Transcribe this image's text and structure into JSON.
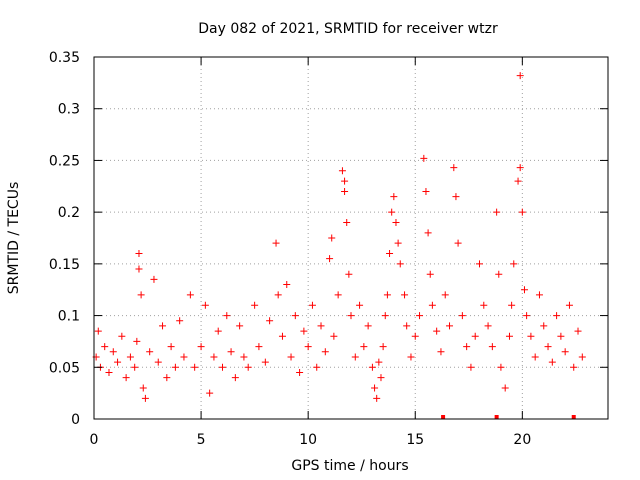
{
  "chart_data": {
    "type": "scatter",
    "title": "Day 082 of 2021, SRMTID for receiver wtzr",
    "xlabel": "GPS time / hours",
    "ylabel": "SRMTID / TECUs",
    "xlim": [
      0,
      24
    ],
    "ylim": [
      0,
      0.35
    ],
    "x_ticks": [
      0,
      5,
      10,
      15,
      20
    ],
    "x_tick_labels": [
      "0",
      "5",
      "10",
      "15",
      "20"
    ],
    "y_ticks": [
      0,
      0.05,
      0.1,
      0.15,
      0.2,
      0.25,
      0.3,
      0.35
    ],
    "y_tick_labels": [
      "0",
      "0.05",
      "0.1",
      "0.15",
      "0.2",
      "0.25",
      "0.3",
      "0.35"
    ],
    "grid": true,
    "marker": "+",
    "color": "#ff0000",
    "series": [
      {
        "name": "SRMTID",
        "points": [
          [
            0.1,
            0.06
          ],
          [
            0.2,
            0.085
          ],
          [
            0.3,
            0.05
          ],
          [
            0.5,
            0.07
          ],
          [
            0.7,
            0.045
          ],
          [
            0.9,
            0.065
          ],
          [
            1.1,
            0.055
          ],
          [
            1.3,
            0.08
          ],
          [
            1.5,
            0.04
          ],
          [
            1.7,
            0.06
          ],
          [
            1.9,
            0.05
          ],
          [
            2.0,
            0.075
          ],
          [
            2.1,
            0.16
          ],
          [
            2.1,
            0.145
          ],
          [
            2.2,
            0.12
          ],
          [
            2.3,
            0.03
          ],
          [
            2.4,
            0.02
          ],
          [
            2.6,
            0.065
          ],
          [
            2.8,
            0.135
          ],
          [
            3.0,
            0.055
          ],
          [
            3.2,
            0.09
          ],
          [
            3.4,
            0.04
          ],
          [
            3.6,
            0.07
          ],
          [
            3.8,
            0.05
          ],
          [
            4.0,
            0.095
          ],
          [
            4.2,
            0.06
          ],
          [
            4.5,
            0.12
          ],
          [
            4.7,
            0.05
          ],
          [
            5.0,
            0.07
          ],
          [
            5.2,
            0.11
          ],
          [
            5.4,
            0.025
          ],
          [
            5.6,
            0.06
          ],
          [
            5.8,
            0.085
          ],
          [
            6.0,
            0.05
          ],
          [
            6.2,
            0.1
          ],
          [
            6.4,
            0.065
          ],
          [
            6.6,
            0.04
          ],
          [
            6.8,
            0.09
          ],
          [
            7.0,
            0.06
          ],
          [
            7.2,
            0.05
          ],
          [
            7.5,
            0.11
          ],
          [
            7.7,
            0.07
          ],
          [
            8.0,
            0.055
          ],
          [
            8.2,
            0.095
          ],
          [
            8.5,
            0.17
          ],
          [
            8.6,
            0.12
          ],
          [
            8.8,
            0.08
          ],
          [
            9.0,
            0.13
          ],
          [
            9.2,
            0.06
          ],
          [
            9.4,
            0.1
          ],
          [
            9.6,
            0.045
          ],
          [
            9.8,
            0.085
          ],
          [
            10.0,
            0.07
          ],
          [
            10.2,
            0.11
          ],
          [
            10.4,
            0.05
          ],
          [
            10.6,
            0.09
          ],
          [
            10.8,
            0.065
          ],
          [
            11.0,
            0.155
          ],
          [
            11.1,
            0.175
          ],
          [
            11.2,
            0.08
          ],
          [
            11.4,
            0.12
          ],
          [
            11.6,
            0.24
          ],
          [
            11.7,
            0.23
          ],
          [
            11.7,
            0.22
          ],
          [
            11.8,
            0.19
          ],
          [
            11.9,
            0.14
          ],
          [
            12.0,
            0.1
          ],
          [
            12.2,
            0.06
          ],
          [
            12.4,
            0.11
          ],
          [
            12.6,
            0.07
          ],
          [
            12.8,
            0.09
          ],
          [
            13.0,
            0.05
          ],
          [
            13.1,
            0.03
          ],
          [
            13.2,
            0.02
          ],
          [
            13.3,
            0.055
          ],
          [
            13.4,
            0.04
          ],
          [
            13.5,
            0.07
          ],
          [
            13.6,
            0.1
          ],
          [
            13.7,
            0.12
          ],
          [
            13.8,
            0.16
          ],
          [
            13.9,
            0.2
          ],
          [
            14.0,
            0.215
          ],
          [
            14.1,
            0.19
          ],
          [
            14.2,
            0.17
          ],
          [
            14.3,
            0.15
          ],
          [
            14.5,
            0.12
          ],
          [
            14.6,
            0.09
          ],
          [
            14.8,
            0.06
          ],
          [
            15.0,
            0.08
          ],
          [
            15.2,
            0.1
          ],
          [
            15.4,
            0.252
          ],
          [
            15.5,
            0.22
          ],
          [
            15.6,
            0.18
          ],
          [
            15.7,
            0.14
          ],
          [
            15.8,
            0.11
          ],
          [
            16.0,
            0.085
          ],
          [
            16.2,
            0.065
          ],
          [
            16.4,
            0.12
          ],
          [
            16.6,
            0.09
          ],
          [
            16.8,
            0.243
          ],
          [
            16.9,
            0.215
          ],
          [
            17.0,
            0.17
          ],
          [
            17.2,
            0.1
          ],
          [
            17.4,
            0.07
          ],
          [
            17.6,
            0.05
          ],
          [
            17.8,
            0.08
          ],
          [
            18.0,
            0.15
          ],
          [
            18.2,
            0.11
          ],
          [
            18.4,
            0.09
          ],
          [
            18.6,
            0.07
          ],
          [
            18.8,
            0.2
          ],
          [
            18.9,
            0.14
          ],
          [
            19.0,
            0.05
          ],
          [
            19.2,
            0.03
          ],
          [
            19.4,
            0.08
          ],
          [
            19.5,
            0.11
          ],
          [
            19.6,
            0.15
          ],
          [
            19.8,
            0.23
          ],
          [
            19.9,
            0.243
          ],
          [
            19.9,
            0.332
          ],
          [
            20.0,
            0.2
          ],
          [
            20.1,
            0.125
          ],
          [
            20.2,
            0.1
          ],
          [
            20.4,
            0.08
          ],
          [
            20.6,
            0.06
          ],
          [
            20.8,
            0.12
          ],
          [
            21.0,
            0.09
          ],
          [
            21.2,
            0.07
          ],
          [
            21.4,
            0.055
          ],
          [
            21.6,
            0.1
          ],
          [
            21.8,
            0.08
          ],
          [
            22.0,
            0.065
          ],
          [
            22.2,
            0.11
          ],
          [
            22.4,
            0.05
          ],
          [
            22.6,
            0.085
          ],
          [
            22.8,
            0.06
          ]
        ]
      }
    ],
    "baseline_markers": [
      16.3,
      18.8,
      22.4
    ]
  }
}
